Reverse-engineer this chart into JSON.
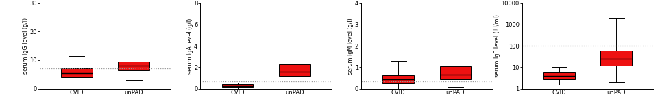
{
  "panels": [
    {
      "ylabel": "serum IgG level (g/l)",
      "ylim": [
        0,
        30
      ],
      "yticks": [
        0,
        10,
        20,
        30
      ],
      "hline": 7.0,
      "boxes": [
        {
          "label": "CVID",
          "whislo": 2.0,
          "q1": 4.0,
          "med": 5.5,
          "q3": 7.0,
          "whishi": 11.5
        },
        {
          "label": "unPAD",
          "whislo": 3.0,
          "q1": 6.5,
          "med": 8.0,
          "q3": 9.5,
          "whishi": 27.0
        }
      ]
    },
    {
      "ylabel": "serum IgA level (g/l)",
      "ylim": [
        0,
        8
      ],
      "yticks": [
        0,
        2,
        4,
        6,
        8
      ],
      "hline": 0.7,
      "boxes": [
        {
          "label": "CVID",
          "whislo": 0.0,
          "q1": 0.08,
          "med": 0.25,
          "q3": 0.42,
          "whishi": 0.52
        },
        {
          "label": "unPAD",
          "whislo": 0.0,
          "q1": 1.2,
          "med": 1.55,
          "q3": 2.3,
          "whishi": 6.0
        }
      ]
    },
    {
      "ylabel": "serum IgM level (g/l)",
      "ylim": [
        0,
        4
      ],
      "yticks": [
        0,
        1,
        2,
        3,
        4
      ],
      "hline": 0.35,
      "boxes": [
        {
          "label": "CVID",
          "whislo": 0.0,
          "q1": 0.25,
          "med": 0.42,
          "q3": 0.62,
          "whishi": 1.3
        },
        {
          "label": "unPAD",
          "whislo": 0.05,
          "q1": 0.45,
          "med": 0.65,
          "q3": 1.05,
          "whishi": 3.5
        }
      ]
    },
    {
      "ylabel": "serum IgE level (IU/ml)",
      "ylim_log": true,
      "ylim": [
        1,
        10000
      ],
      "yticks": [
        1,
        10,
        100,
        1000,
        10000
      ],
      "hline": 100,
      "boxes": [
        {
          "label": "CVID",
          "whislo": 1.5,
          "q1": 2.8,
          "med": 4.0,
          "q3": 5.5,
          "whishi": 10
        },
        {
          "label": "unPAD",
          "whislo": 2.0,
          "q1": 12,
          "med": 25,
          "q3": 60,
          "whishi": 2000
        }
      ]
    }
  ],
  "box_color": "#EE1111",
  "median_color": "#000000",
  "whisker_color": "#000000",
  "hline_color": "#999999",
  "bg_color": "#ffffff",
  "box_width": 0.55
}
